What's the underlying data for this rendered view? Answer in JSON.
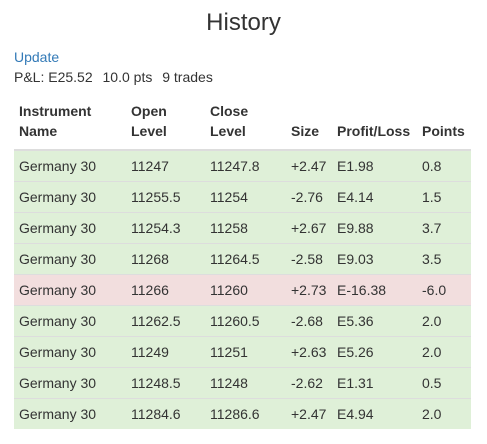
{
  "header": {
    "title": "History",
    "update_label": "Update"
  },
  "summary": {
    "pnl": "P&L: E25.52",
    "pts": "10.0 pts",
    "trades": "9 trades"
  },
  "table": {
    "columns": [
      [
        "Instrument",
        "Name"
      ],
      [
        "Open",
        "Level"
      ],
      [
        "Close",
        "Level"
      ],
      [
        "Size"
      ],
      [
        "Profit/Loss"
      ],
      [
        "Points"
      ]
    ],
    "rows": [
      {
        "instrument": "Germany 30",
        "open": "11247",
        "close": "11247.8",
        "size": "+2.47",
        "pl": "E1.98",
        "points": "0.8",
        "result": "win"
      },
      {
        "instrument": "Germany 30",
        "open": "11255.5",
        "close": "11254",
        "size": "-2.76",
        "pl": "E4.14",
        "points": "1.5",
        "result": "win"
      },
      {
        "instrument": "Germany 30",
        "open": "11254.3",
        "close": "11258",
        "size": "+2.67",
        "pl": "E9.88",
        "points": "3.7",
        "result": "win"
      },
      {
        "instrument": "Germany 30",
        "open": "11268",
        "close": "11264.5",
        "size": "-2.58",
        "pl": "E9.03",
        "points": "3.5",
        "result": "win"
      },
      {
        "instrument": "Germany 30",
        "open": "11266",
        "close": "11260",
        "size": "+2.73",
        "pl": "E-16.38",
        "points": "-6.0",
        "result": "loss"
      },
      {
        "instrument": "Germany 30",
        "open": "11262.5",
        "close": "11260.5",
        "size": "-2.68",
        "pl": "E5.36",
        "points": "2.0",
        "result": "win"
      },
      {
        "instrument": "Germany 30",
        "open": "11249",
        "close": "11251",
        "size": "+2.63",
        "pl": "E5.26",
        "points": "2.0",
        "result": "win"
      },
      {
        "instrument": "Germany 30",
        "open": "11248.5",
        "close": "11248",
        "size": "-2.62",
        "pl": "E1.31",
        "points": "0.5",
        "result": "win"
      },
      {
        "instrument": "Germany 30",
        "open": "11284.6",
        "close": "11286.6",
        "size": "+2.47",
        "pl": "E4.94",
        "points": "2.0",
        "result": "win"
      }
    ]
  },
  "colors": {
    "win_row": "#dff0d8",
    "loss_row": "#f2dede",
    "link": "#337ab7"
  }
}
